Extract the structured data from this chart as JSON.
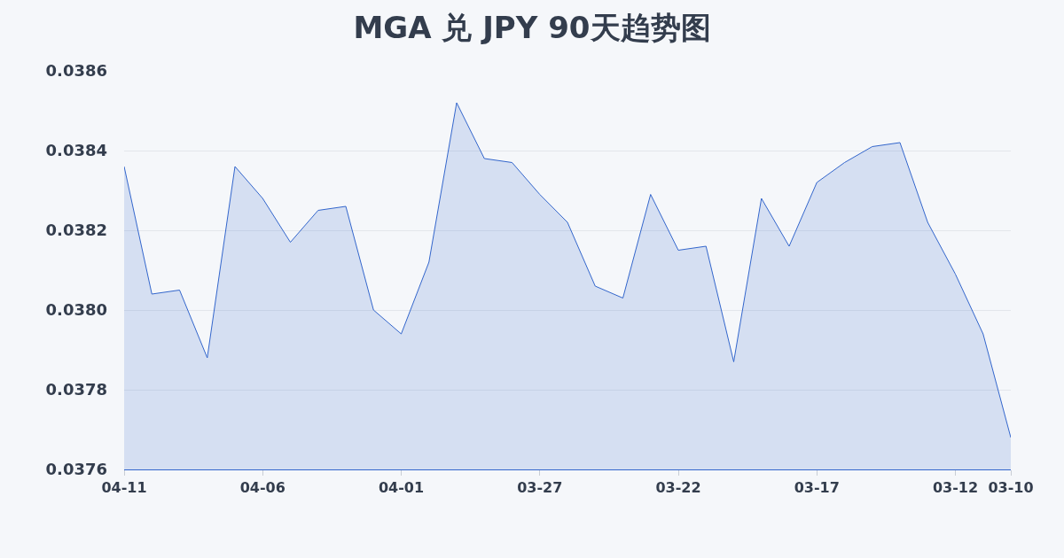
{
  "chart_data": {
    "type": "area",
    "title": "MGA 兑 JPY 90天趋势图",
    "x": [
      "--04-11",
      "--04-10",
      "--04-09",
      "--04-08",
      "--04-07",
      "--04-06",
      "--04-05",
      "--04-04",
      "--04-03",
      "--04-02",
      "--04-01",
      "--03-31",
      "--03-30",
      "--03-29",
      "--03-28",
      "--03-27",
      "--03-26",
      "--03-25",
      "--03-24",
      "--03-23",
      "--03-22",
      "--03-21",
      "--03-20",
      "--03-19",
      "--03-18",
      "--03-17",
      "--03-16",
      "--03-15",
      "--03-14",
      "--03-13",
      "--03-12",
      "--03-11",
      "--03-10"
    ],
    "series": [
      {
        "color": "#3366cc",
        "values": [
          0.03836,
          0.03804,
          0.03805,
          0.03788,
          0.03836,
          0.03828,
          0.03817,
          0.03825,
          0.03826,
          0.038,
          0.03794,
          0.03812,
          0.03852,
          0.03838,
          0.03837,
          0.03829,
          0.03822,
          0.03806,
          0.03803,
          0.03829,
          0.03815,
          0.03816,
          0.03787,
          0.03828,
          0.03816,
          0.03832,
          0.03837,
          0.03841,
          0.03842,
          0.03822,
          0.03809,
          0.03794,
          0.03768
        ]
      }
    ],
    "xlim": [
      "--04-11",
      "--03-10"
    ],
    "xticks": [
      {
        "value": "--04-11",
        "label": "04-11"
      },
      {
        "value": "--04-06",
        "label": "04-06"
      },
      {
        "value": "--04-01",
        "label": "04-01"
      },
      {
        "value": "--03-27",
        "label": "03-27"
      },
      {
        "value": "--03-22",
        "label": "03-22"
      },
      {
        "value": "--03-17",
        "label": "03-17"
      },
      {
        "value": "--03-12",
        "label": "03-12"
      },
      {
        "value": "--03-10",
        "label": "03-10"
      }
    ],
    "ylim": [
      0.0376,
      0.0386
    ],
    "yticks": [
      0.0376,
      0.0378,
      {
        "value": 0.038,
        "label": "0.0380"
      },
      0.0382,
      0.0384,
      0.0386
    ],
    "grid": "y",
    "marker": "none",
    "line_style": "solid"
  }
}
